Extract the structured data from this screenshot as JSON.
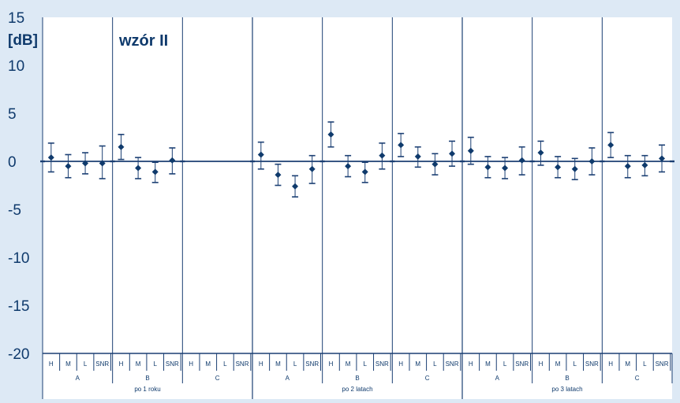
{
  "colors": {
    "background": "#dde9f5",
    "plot_background": "#ffffff",
    "line": "#1b3f73",
    "marker": "#0f3a6c"
  },
  "chart_data": {
    "type": "scatter",
    "title": "wzór II",
    "ylabel": "[dB]",
    "xlabel": "",
    "ylim": [
      -20,
      15
    ],
    "y_ticks": [
      15,
      10,
      5,
      0,
      -5,
      -10,
      -15,
      -20
    ],
    "grid": false,
    "error_bars": true,
    "x_levels": {
      "measures": [
        "H",
        "M",
        "L",
        "SNR"
      ],
      "variants": [
        "A",
        "B",
        "C"
      ],
      "periods": [
        "po 1 roku",
        "po 2 latach",
        "po 3 latach"
      ]
    },
    "groups": [
      {
        "period": "po 1 roku",
        "variant": "A",
        "points": [
          {
            "label": "H",
            "value": 0.4,
            "low": -1.1,
            "high": 1.9
          },
          {
            "label": "M",
            "value": -0.5,
            "low": -1.7,
            "high": 0.7
          },
          {
            "label": "L",
            "value": -0.2,
            "low": -1.3,
            "high": 0.9
          },
          {
            "label": "SNR",
            "value": -0.2,
            "low": -1.8,
            "high": 1.6
          }
        ]
      },
      {
        "period": "po 1 roku",
        "variant": "B",
        "points": [
          {
            "label": "H",
            "value": 1.5,
            "low": 0.2,
            "high": 2.8
          },
          {
            "label": "M",
            "value": -0.7,
            "low": -1.8,
            "high": 0.4
          },
          {
            "label": "L",
            "value": -1.1,
            "low": -2.2,
            "high": -0.1
          },
          {
            "label": "SNR",
            "value": 0.1,
            "low": -1.3,
            "high": 1.4
          }
        ]
      },
      {
        "period": "po 1 roku",
        "variant": "C",
        "points": []
      },
      {
        "period": "po 2 latach",
        "variant": "A",
        "points": [
          {
            "label": "H",
            "value": 0.7,
            "low": -0.8,
            "high": 2.0
          },
          {
            "label": "M",
            "value": -1.4,
            "low": -2.5,
            "high": -0.3
          },
          {
            "label": "L",
            "value": -2.6,
            "low": -3.7,
            "high": -1.5
          },
          {
            "label": "SNR",
            "value": -0.8,
            "low": -2.3,
            "high": 0.6
          }
        ]
      },
      {
        "period": "po 2 latach",
        "variant": "B",
        "points": [
          {
            "label": "H",
            "value": 2.8,
            "low": 1.5,
            "high": 4.1
          },
          {
            "label": "M",
            "value": -0.5,
            "low": -1.6,
            "high": 0.6
          },
          {
            "label": "L",
            "value": -1.1,
            "low": -2.2,
            "high": -0.1
          },
          {
            "label": "SNR",
            "value": 0.6,
            "low": -0.8,
            "high": 1.9
          }
        ]
      },
      {
        "period": "po 2 latach",
        "variant": "C",
        "points": [
          {
            "label": "H",
            "value": 1.7,
            "low": 0.5,
            "high": 2.9
          },
          {
            "label": "M",
            "value": 0.5,
            "low": -0.6,
            "high": 1.5
          },
          {
            "label": "L",
            "value": -0.3,
            "low": -1.4,
            "high": 0.8
          },
          {
            "label": "SNR",
            "value": 0.8,
            "low": -0.5,
            "high": 2.1
          }
        ]
      },
      {
        "period": "po 3 latach",
        "variant": "A",
        "points": [
          {
            "label": "H",
            "value": 1.1,
            "low": -0.3,
            "high": 2.5
          },
          {
            "label": "M",
            "value": -0.6,
            "low": -1.7,
            "high": 0.5
          },
          {
            "label": "L",
            "value": -0.7,
            "low": -1.8,
            "high": 0.4
          },
          {
            "label": "SNR",
            "value": 0.1,
            "low": -1.4,
            "high": 1.5
          }
        ]
      },
      {
        "period": "po 3 latach",
        "variant": "B",
        "points": [
          {
            "label": "H",
            "value": 0.9,
            "low": -0.4,
            "high": 2.1
          },
          {
            "label": "M",
            "value": -0.6,
            "low": -1.7,
            "high": 0.5
          },
          {
            "label": "L",
            "value": -0.8,
            "low": -1.9,
            "high": 0.3
          },
          {
            "label": "SNR",
            "value": 0.0,
            "low": -1.4,
            "high": 1.4
          }
        ]
      },
      {
        "period": "po 3 latach",
        "variant": "C",
        "points": [
          {
            "label": "H",
            "value": 1.7,
            "low": 0.4,
            "high": 3.0
          },
          {
            "label": "M",
            "value": -0.5,
            "low": -1.7,
            "high": 0.6
          },
          {
            "label": "L",
            "value": -0.4,
            "low": -1.5,
            "high": 0.6
          },
          {
            "label": "SNR",
            "value": 0.3,
            "low": -1.1,
            "high": 1.7
          }
        ]
      }
    ]
  }
}
